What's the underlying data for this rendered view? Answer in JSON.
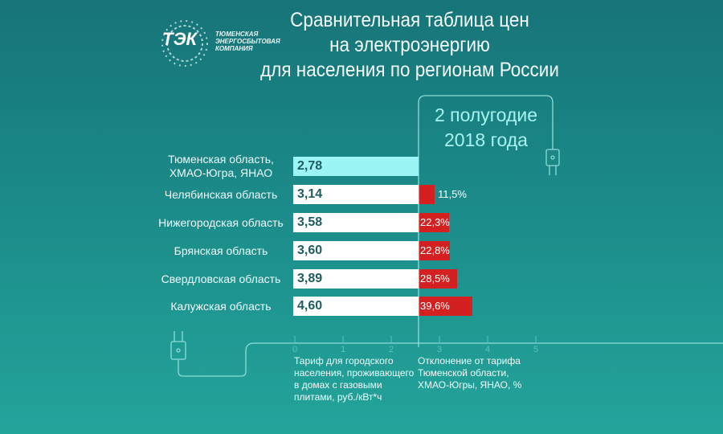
{
  "logo": {
    "mark": "ТЭК",
    "line1": "ТЮМЕНСКАЯ",
    "line2": "ЭНЕРГОСБЫТОВАЯ",
    "line3": "КОМПАНИЯ"
  },
  "title": [
    "Сравнительная таблица цен",
    "на электроэнергию",
    "для населения по регионам России"
  ],
  "period": [
    "2 полугодие",
    "2018 года"
  ],
  "colors": {
    "base_bar": "#9cf5f5",
    "bar": "#ffffff",
    "deviation": "#d42020",
    "background": "#1b8a88"
  },
  "chart_data": {
    "type": "bar",
    "title": "Сравнительная таблица цен на электроэнергию для населения по регионам России",
    "categories": [
      "Тюменская область, ХМАО-Югра, ЯНАО",
      "Челябинская область",
      "Нижегородская область",
      "Брянская область",
      "Свердловская область",
      "Калужская область"
    ],
    "category_lines": [
      [
        "Тюменская область,",
        "ХМАО-Югра, ЯНАО"
      ],
      [
        "Челябинская область"
      ],
      [
        "Нижегородская область"
      ],
      [
        "Брянская область"
      ],
      [
        "Свердловская область"
      ],
      [
        "Калужская область"
      ]
    ],
    "series": [
      {
        "name": "Тариф для городского населения, проживающего в домах с газовыми плитами, руб./кВт*ч",
        "values": [
          2.78,
          3.14,
          3.58,
          3.6,
          3.89,
          4.6
        ],
        "labels": [
          "2,78",
          "3,14",
          "3,58",
          "3,60",
          "3,89",
          "4,60"
        ]
      },
      {
        "name": "Отклонение от тарифа Тюменской области, ХМАО-Югры, ЯНАО, %",
        "values": [
          null,
          11.5,
          22.3,
          22.8,
          28.5,
          39.6
        ],
        "labels": [
          "",
          "11,5%",
          "22,3%",
          "22,8%",
          "28,5%",
          "39,6%"
        ]
      }
    ],
    "x_ticks": [
      "0",
      "1",
      "2",
      "3",
      "4",
      "5"
    ],
    "notes": {
      "left": [
        "Тариф для городского",
        "населения, проживающего",
        "в домах с газовыми",
        "плитами, руб./кВт*ч"
      ],
      "right": [
        "Отклонение от тарифа",
        "Тюменской области,",
        "ХМАО-Югры, ЯНАО, %"
      ]
    }
  }
}
